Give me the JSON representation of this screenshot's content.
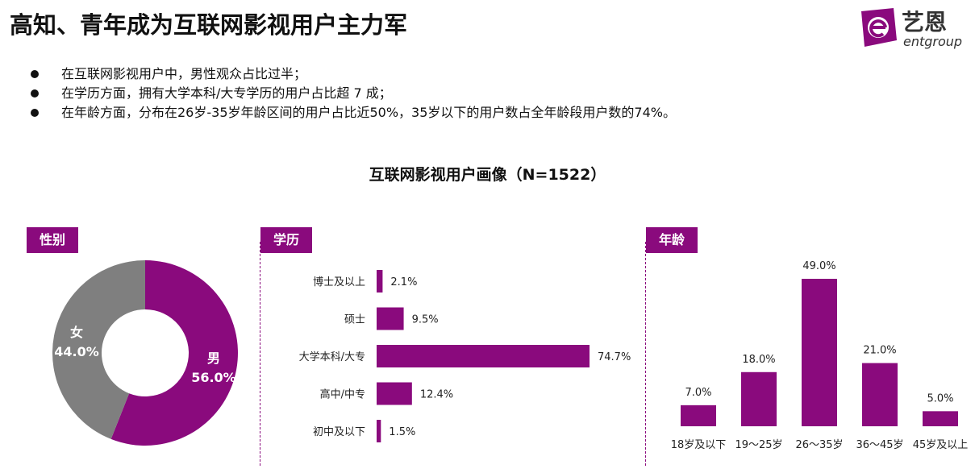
{
  "page": {
    "title": "高知、青年成为互联网影视用户主力军",
    "logo": {
      "name": "艺恩",
      "sub": "entgroup",
      "icon": "entgroup-logo-icon"
    },
    "bullets": [
      "在互联网影视用户中，男性观众占比过半；",
      "在学历方面，拥有大学本科/大专学历的用户占比超 7 成；",
      "在年龄方面，分布在26岁-35岁年龄区间的用户占比近50%，35岁以下的用户数占全年龄段用户数的74%。"
    ]
  },
  "colors": {
    "accent": "#8a0a7d",
    "gray": "#7f7f7f"
  },
  "chart_data": [
    {
      "type": "pie",
      "title": "互联网影视用户画像（N=1522）",
      "panel_label": "性别",
      "donut": true,
      "slices": [
        {
          "label": "男",
          "value": 56.0,
          "display": "56.0%",
          "color": "#8a0a7d"
        },
        {
          "label": "女",
          "value": 44.0,
          "display": "44.0%",
          "color": "#7f7f7f"
        }
      ]
    },
    {
      "type": "bar",
      "orientation": "horizontal",
      "panel_label": "学历",
      "categories": [
        "博士及以上",
        "硕士",
        "大学本科/大专",
        "高中/中专",
        "初中及以下"
      ],
      "values": [
        2.1,
        9.5,
        74.7,
        12.4,
        1.5
      ],
      "labels": [
        "2.1%",
        "9.5%",
        "74.7%",
        "12.4%",
        "1.5%"
      ],
      "unit": "%",
      "color": "#8a0a7d"
    },
    {
      "type": "bar",
      "orientation": "vertical",
      "panel_label": "年龄",
      "categories": [
        "18岁及以下",
        "19～25岁",
        "26～35岁",
        "36～45岁",
        "45岁及以上"
      ],
      "values": [
        7.0,
        18.0,
        49.0,
        21.0,
        5.0
      ],
      "labels": [
        "7.0%",
        "18.0%",
        "49.0%",
        "21.0%",
        "5.0%"
      ],
      "unit": "%",
      "color": "#8a0a7d"
    }
  ]
}
